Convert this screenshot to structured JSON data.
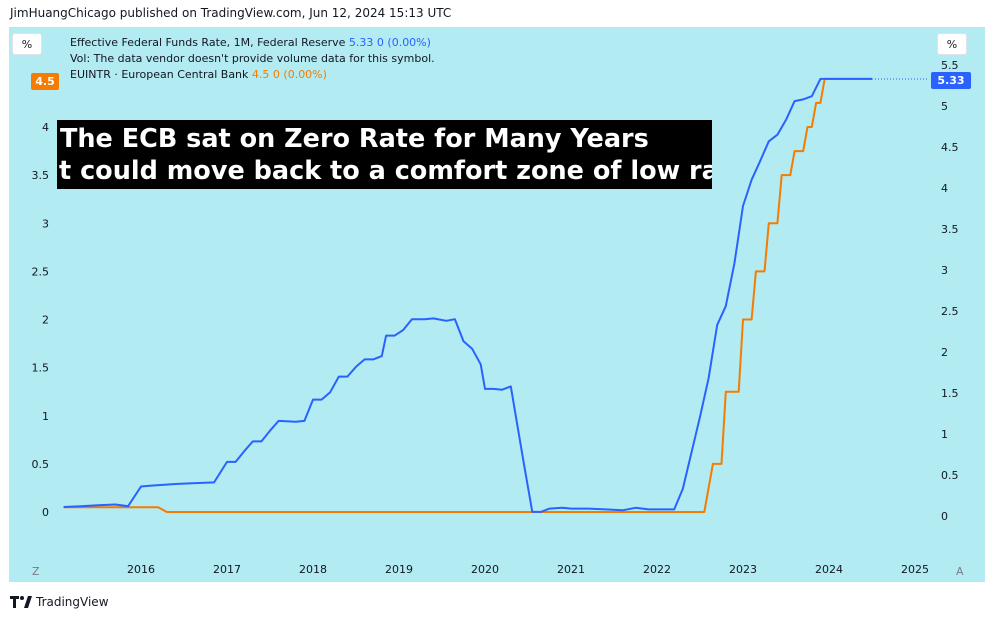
{
  "publish_line": "JimHuangChicago published on TradingView.com, Jun 12, 2024 15:13 UTC",
  "scale_left_label": "%",
  "scale_right_label": "%",
  "legend": {
    "fed_name": "Effective Federal Funds Rate, 1M, Federal Reserve",
    "fed_value": "5.33",
    "fed_change": "0 (0.00%)",
    "vol_line": "Vol: The data vendor doesn't provide volume data for this symbol.",
    "ecb_name": "EUINTR · European Central Bank",
    "ecb_value": "4.5",
    "ecb_change": "0 (0.00%)"
  },
  "left_value_tag": "4.5",
  "right_value_tag": "5.33",
  "annotation": {
    "line1": "The ECB sat on Zero Rate for Many Years",
    "line2": "t could move back to a comfort zone of low rates"
  },
  "bottom_left_button": "Z",
  "bottom_right_button": "A",
  "brand": "TradingView",
  "colors": {
    "background": "#b2ebf2",
    "fed_line": "#2962ff",
    "ecb_line": "#f57c00",
    "annotation_bg": "#000000"
  },
  "chart_data": {
    "type": "line",
    "x_ticks": [
      "2016",
      "2017",
      "2018",
      "2019",
      "2020",
      "2021",
      "2022",
      "2023",
      "2024",
      "2025"
    ],
    "left_axis": {
      "range": [
        0,
        4.5
      ],
      "ticks": [
        "0",
        "0.5",
        "1",
        "1.5",
        "2",
        "2.5",
        "3",
        "3.5",
        "4"
      ]
    },
    "right_axis": {
      "range": [
        0,
        5.5
      ],
      "ticks": [
        "0",
        "0.5",
        "1",
        "1.5",
        "2",
        "2.5",
        "3",
        "3.5",
        "4",
        "4.5",
        "5",
        "5.5"
      ]
    },
    "series": [
      {
        "name": "Effective Federal Funds Rate",
        "axis": "right",
        "color": "#2962ff",
        "points": [
          [
            2015.1,
            0.11
          ],
          [
            2015.3,
            0.12
          ],
          [
            2015.5,
            0.13
          ],
          [
            2015.7,
            0.14
          ],
          [
            2015.85,
            0.12
          ],
          [
            2016.0,
            0.36
          ],
          [
            2016.1,
            0.37
          ],
          [
            2016.4,
            0.39
          ],
          [
            2016.6,
            0.4
          ],
          [
            2016.85,
            0.41
          ],
          [
            2017.0,
            0.66
          ],
          [
            2017.1,
            0.66
          ],
          [
            2017.2,
            0.79
          ],
          [
            2017.3,
            0.91
          ],
          [
            2017.4,
            0.91
          ],
          [
            2017.5,
            1.04
          ],
          [
            2017.6,
            1.16
          ],
          [
            2017.8,
            1.15
          ],
          [
            2017.9,
            1.16
          ],
          [
            2018.0,
            1.42
          ],
          [
            2018.1,
            1.42
          ],
          [
            2018.2,
            1.51
          ],
          [
            2018.3,
            1.7
          ],
          [
            2018.4,
            1.7
          ],
          [
            2018.5,
            1.82
          ],
          [
            2018.6,
            1.91
          ],
          [
            2018.7,
            1.91
          ],
          [
            2018.8,
            1.95
          ],
          [
            2018.85,
            2.2
          ],
          [
            2018.95,
            2.2
          ],
          [
            2019.05,
            2.27
          ],
          [
            2019.15,
            2.4
          ],
          [
            2019.3,
            2.4
          ],
          [
            2019.4,
            2.41
          ],
          [
            2019.55,
            2.38
          ],
          [
            2019.65,
            2.4
          ],
          [
            2019.75,
            2.13
          ],
          [
            2019.85,
            2.04
          ],
          [
            2019.95,
            1.85
          ],
          [
            2020.0,
            1.55
          ],
          [
            2020.1,
            1.55
          ],
          [
            2020.2,
            1.54
          ],
          [
            2020.3,
            1.58
          ],
          [
            2020.45,
            0.65
          ],
          [
            2020.55,
            0.05
          ],
          [
            2020.65,
            0.05
          ],
          [
            2020.75,
            0.09
          ],
          [
            2020.9,
            0.1
          ],
          [
            2021.0,
            0.09
          ],
          [
            2021.2,
            0.09
          ],
          [
            2021.4,
            0.08
          ],
          [
            2021.6,
            0.07
          ],
          [
            2021.75,
            0.1
          ],
          [
            2021.9,
            0.08
          ],
          [
            2022.0,
            0.08
          ],
          [
            2022.2,
            0.08
          ],
          [
            2022.3,
            0.33
          ],
          [
            2022.4,
            0.77
          ],
          [
            2022.5,
            1.21
          ],
          [
            2022.6,
            1.68
          ],
          [
            2022.7,
            2.33
          ],
          [
            2022.8,
            2.56
          ],
          [
            2022.9,
            3.08
          ],
          [
            2023.0,
            3.78
          ],
          [
            2023.1,
            4.1
          ],
          [
            2023.2,
            4.33
          ],
          [
            2023.3,
            4.57
          ],
          [
            2023.4,
            4.65
          ],
          [
            2023.5,
            4.83
          ],
          [
            2023.6,
            5.06
          ],
          [
            2023.7,
            5.08
          ],
          [
            2023.8,
            5.12
          ],
          [
            2023.9,
            5.33
          ],
          [
            2024.0,
            5.33
          ],
          [
            2024.2,
            5.33
          ],
          [
            2024.4,
            5.33
          ],
          [
            2024.5,
            5.33
          ]
        ]
      },
      {
        "name": "EUINTR · European Central Bank",
        "axis": "left",
        "color": "#f57c00",
        "points": [
          [
            2015.1,
            0.05
          ],
          [
            2016.2,
            0.05
          ],
          [
            2016.3,
            0.0
          ],
          [
            2022.55,
            0.0
          ],
          [
            2022.65,
            0.5
          ],
          [
            2022.75,
            0.5
          ],
          [
            2022.8,
            1.25
          ],
          [
            2022.95,
            1.25
          ],
          [
            2023.0,
            2.0
          ],
          [
            2023.1,
            2.0
          ],
          [
            2023.15,
            2.5
          ],
          [
            2023.25,
            2.5
          ],
          [
            2023.3,
            3.0
          ],
          [
            2023.4,
            3.0
          ],
          [
            2023.45,
            3.5
          ],
          [
            2023.55,
            3.5
          ],
          [
            2023.6,
            3.75
          ],
          [
            2023.7,
            3.75
          ],
          [
            2023.75,
            4.0
          ],
          [
            2023.8,
            4.0
          ],
          [
            2023.85,
            4.25
          ],
          [
            2023.9,
            4.25
          ],
          [
            2023.95,
            4.5
          ],
          [
            2024.5,
            4.5
          ]
        ]
      }
    ]
  }
}
